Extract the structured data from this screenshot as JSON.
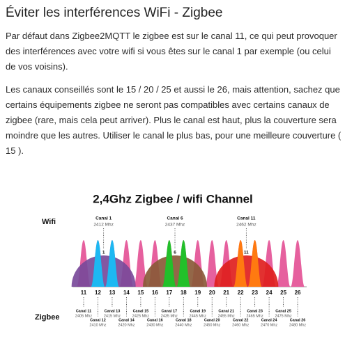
{
  "header": {
    "title": "Éviter les interférences WiFi - Zigbee"
  },
  "paragraphs": [
    "Par défaut dans Zigbee2MQTT le zigbee est sur le canal 11, ce qui peut provoquer des interférences avec votre wifi si vous êtes sur le canal 1 par exemple (ou celui de vos voisins).",
    "Les canaux conseillés sont le 15 / 20 / 25 et aussi le 26, mais attention, sachez que certains équipements zigbee ne seront pas compatibles avec certains canaux de zigbee (rare, mais cela peut arriver). Plus le canal est haut, plus la couverture sera moindre que les autres. Utiliser le canal le plus bas, pour une meilleure couverture ( 15 )."
  ],
  "diagram": {
    "title": "2,4Ghz Zigbee / wifi Channel",
    "wifi_label": "Wifi",
    "zigbee_label": "Zigbee",
    "wifi_channels": [
      {
        "name": "Canal 1",
        "freq": "2412 Mhz",
        "number": "1",
        "color": "#7a4a9a",
        "peak_color": "#1db8f2"
      },
      {
        "name": "Canal 6",
        "freq": "2437 Mhz",
        "number": "6",
        "color": "#8a5a38",
        "peak_color": "#22c02a"
      },
      {
        "name": "Canal 11",
        "freq": "2462 Mhz",
        "number": "11",
        "color": "#e0201e",
        "peak_color": "#ff7a10"
      }
    ],
    "zigbee_color": "#e6609e",
    "zigbee_channels": [
      {
        "number": "11",
        "name": "Canal 11",
        "freq": "2405 Mhz"
      },
      {
        "number": "12",
        "name": "Canal 12",
        "freq": "2410 Mhz"
      },
      {
        "number": "13",
        "name": "Canal 13",
        "freq": "2415 Mhz"
      },
      {
        "number": "14",
        "name": "Canal 14",
        "freq": "2420 Mhz"
      },
      {
        "number": "15",
        "name": "Canal 15",
        "freq": "2425 Mhz"
      },
      {
        "number": "16",
        "name": "Canal 16",
        "freq": "2430 Mhz"
      },
      {
        "number": "17",
        "name": "Canal 17",
        "freq": "2435 Mhz"
      },
      {
        "number": "18",
        "name": "Canal 18",
        "freq": "2440 Mhz"
      },
      {
        "number": "19",
        "name": "Canal 19",
        "freq": "2445 Mhz"
      },
      {
        "number": "20",
        "name": "Canal 20",
        "freq": "2450 Mhz"
      },
      {
        "number": "21",
        "name": "Canal 21",
        "freq": "2455 Mhz"
      },
      {
        "number": "22",
        "name": "Canal 22",
        "freq": "2460 Mhz"
      },
      {
        "number": "23",
        "name": "Canal 23",
        "freq": "2465 Mhz"
      },
      {
        "number": "24",
        "name": "Canal 24",
        "freq": "2470 Mhz"
      },
      {
        "number": "25",
        "name": "Canal 25",
        "freq": "2475 Mhz"
      },
      {
        "number": "26",
        "name": "Canal 26",
        "freq": "2480 Mhz"
      }
    ]
  }
}
